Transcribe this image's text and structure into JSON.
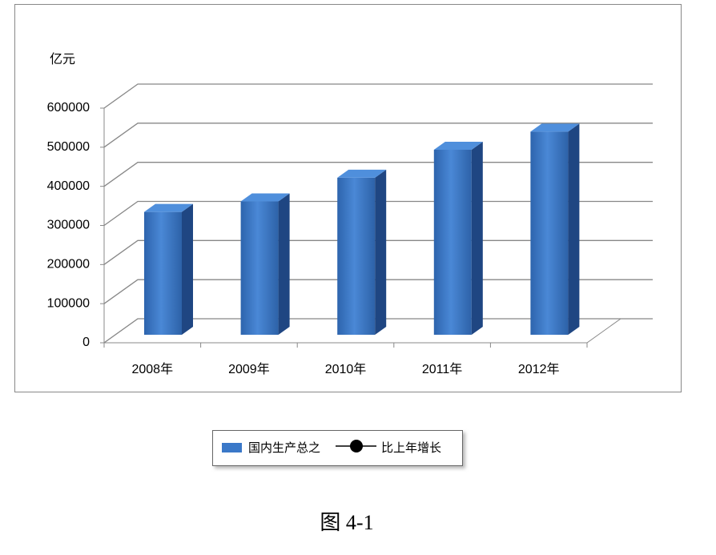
{
  "chart_data": {
    "type": "bar3d",
    "y_label": "亿元",
    "caption": "图 4-1",
    "categories": [
      "2008年",
      "2009年",
      "2010年",
      "2011年",
      "2012年"
    ],
    "series": [
      {
        "name": "国内生产总之",
        "type": "bar",
        "color": "#3a78c8",
        "values": [
          314045,
          340903,
          401513,
          473104,
          519470
        ]
      },
      {
        "name": "比上年增长",
        "type": "line",
        "color": "#000000",
        "values": [
          null,
          null,
          null,
          null,
          null
        ]
      }
    ],
    "ylim": [
      0,
      600000
    ],
    "yticks": [
      0,
      100000,
      200000,
      300000,
      400000,
      500000,
      600000
    ],
    "grid": true
  }
}
